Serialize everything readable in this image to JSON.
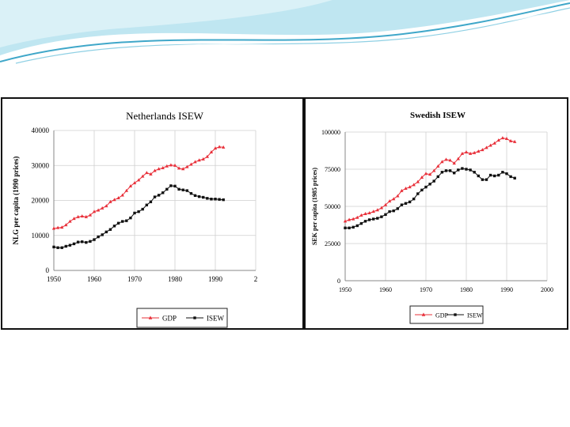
{
  "colors": {
    "gdp": "#e8303a",
    "isew": "#111111",
    "grid": "#cfcfcf",
    "swoosh_light": "#b9e4f0",
    "swoosh_dark": "#3fa7c9"
  },
  "chart_data": [
    {
      "type": "line",
      "title": "Netherlands ISEW",
      "xlabel": "",
      "ylabel": "NLG per capita (1990 prices)",
      "xlim": [
        1950,
        2000
      ],
      "ylim": [
        0,
        40000
      ],
      "x_ticks": [
        "1950",
        "1960",
        "1970",
        "1980",
        "1990",
        "2"
      ],
      "y_ticks": [
        "0",
        "10000",
        "20000",
        "30000",
        "40000"
      ],
      "legend": [
        "GDP",
        "ISEW"
      ],
      "legend_position": "bottom",
      "grid": true,
      "x": [
        1950,
        1951,
        1952,
        1953,
        1954,
        1955,
        1956,
        1957,
        1958,
        1959,
        1960,
        1961,
        1962,
        1963,
        1964,
        1965,
        1966,
        1967,
        1968,
        1969,
        1970,
        1971,
        1972,
        1973,
        1974,
        1975,
        1976,
        1977,
        1978,
        1979,
        1980,
        1981,
        1982,
        1983,
        1984,
        1985,
        1986,
        1987,
        1988,
        1989,
        1990,
        1991,
        1992
      ],
      "series": [
        {
          "name": "GDP",
          "values": [
            12000,
            12200,
            12300,
            13000,
            14000,
            14800,
            15300,
            15500,
            15300,
            15800,
            16800,
            17200,
            17800,
            18400,
            19600,
            20200,
            20700,
            21500,
            22800,
            24100,
            25000,
            25800,
            26900,
            27900,
            27500,
            28500,
            29000,
            29300,
            29800,
            30100,
            30000,
            29200,
            29000,
            29600,
            30300,
            31000,
            31500,
            31800,
            32500,
            33800,
            34900,
            35300,
            35200
          ]
        },
        {
          "name": "ISEW",
          "values": [
            6700,
            6500,
            6500,
            6900,
            7200,
            7600,
            8100,
            8200,
            8000,
            8300,
            8800,
            9600,
            10200,
            11000,
            11700,
            12700,
            13500,
            14000,
            14200,
            15000,
            16400,
            16800,
            17500,
            18700,
            19600,
            21000,
            21500,
            22200,
            23200,
            24200,
            24100,
            23200,
            23000,
            22800,
            22000,
            21400,
            21100,
            20900,
            20600,
            20400,
            20400,
            20300,
            20200
          ]
        }
      ]
    },
    {
      "type": "line",
      "title": "Swedish ISEW",
      "xlabel": "",
      "ylabel": "SEK per capita (1985 prices)",
      "xlim": [
        1950,
        2000
      ],
      "ylim": [
        0,
        100000
      ],
      "x_ticks": [
        "1950",
        "1960",
        "1970",
        "1980",
        "1990",
        "2000"
      ],
      "y_ticks": [
        "0",
        "25000",
        "50000",
        "75000",
        "100000"
      ],
      "legend": [
        "GDP",
        "ISEW"
      ],
      "legend_position": "bottom",
      "grid": true,
      "x": [
        1950,
        1951,
        1952,
        1953,
        1954,
        1955,
        1956,
        1957,
        1958,
        1959,
        1960,
        1961,
        1962,
        1963,
        1964,
        1965,
        1966,
        1967,
        1968,
        1969,
        1970,
        1971,
        1972,
        1973,
        1974,
        1975,
        1976,
        1977,
        1978,
        1979,
        1980,
        1981,
        1982,
        1983,
        1984,
        1985,
        1986,
        1987,
        1988,
        1989,
        1990,
        1991,
        1992
      ],
      "series": [
        {
          "name": "GDP",
          "values": [
            40000,
            41000,
            41500,
            42500,
            44000,
            45000,
            45500,
            46500,
            47500,
            49000,
            51000,
            53500,
            55000,
            57000,
            60500,
            62000,
            63000,
            64500,
            66500,
            69500,
            72000,
            71500,
            74000,
            77000,
            80000,
            81500,
            81000,
            79000,
            82000,
            85500,
            86500,
            85500,
            86000,
            87000,
            88000,
            89500,
            91000,
            92500,
            94500,
            96000,
            95500,
            94000,
            93500
          ]
        },
        {
          "name": "ISEW",
          "values": [
            35500,
            35500,
            36000,
            37000,
            38500,
            40000,
            41000,
            41500,
            42000,
            43000,
            44500,
            46500,
            47000,
            48500,
            51000,
            52000,
            53000,
            55000,
            58500,
            61000,
            63000,
            65000,
            67000,
            70000,
            73000,
            74000,
            74000,
            72500,
            74500,
            75500,
            75000,
            74500,
            73000,
            70500,
            68000,
            68000,
            71000,
            70500,
            71000,
            73000,
            72000,
            70000,
            69000
          ]
        }
      ]
    }
  ]
}
